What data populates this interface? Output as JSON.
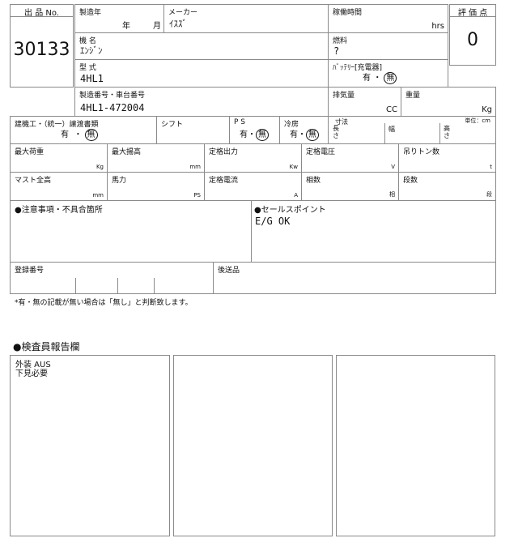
{
  "lot": {
    "label": "出 品 No.",
    "value": "30133"
  },
  "score": {
    "label": "評 価 点",
    "value": "0"
  },
  "year": {
    "label": "製造年",
    "year_unit": "年",
    "month_unit": "月"
  },
  "maker": {
    "label": "メーカー",
    "value": "ｲｽｽﾞ"
  },
  "hours": {
    "label": "稼働時間",
    "unit": "hrs"
  },
  "model_name": {
    "label": "機 名",
    "value": "ｴﾝｼﾞﾝ"
  },
  "fuel": {
    "label": "燃料",
    "value": "?"
  },
  "model_type": {
    "label": "型 式",
    "value": "4HL1"
  },
  "battery": {
    "label": "ﾊﾞｯﾃﾘｰ[充電器]",
    "yes": "有",
    "sep": "・",
    "no": "無",
    "selected": "無"
  },
  "serial": {
    "label": "製造番号・車台番号",
    "value": "4HL1-472004"
  },
  "displacement": {
    "label": "排気量",
    "unit": "CC"
  },
  "weight": {
    "label": "重量",
    "unit": "Kg"
  },
  "transfer_docs": {
    "label": "建機工・（統一）譲渡書類",
    "yes": "有",
    "sep": "・",
    "no": "無",
    "selected": "無"
  },
  "shift": {
    "label": "シフト"
  },
  "ps": {
    "label": "P S",
    "yes": "有",
    "sep": "・",
    "no": "無",
    "selected": "無"
  },
  "aircon": {
    "label": "冷房",
    "yes": "有",
    "sep": "・",
    "no": "無",
    "selected": "無"
  },
  "dimensions": {
    "label": "寸法",
    "length": "長さ",
    "width": "幅",
    "height": "高さ",
    "unit_note": "単位：cm"
  },
  "specs": [
    {
      "label": "最大荷重",
      "unit": "Kg"
    },
    {
      "label": "最大揚高",
      "unit": "mm"
    },
    {
      "label": "定格出力",
      "unit": "Kw"
    },
    {
      "label": "定格電圧",
      "unit": "V"
    },
    {
      "label": "吊りトン数",
      "unit": "t"
    },
    {
      "label": "マスト全高",
      "unit": "mm"
    },
    {
      "label": "馬力",
      "unit": "PS"
    },
    {
      "label": "定格電流",
      "unit": "A"
    },
    {
      "label": "相数",
      "unit": "相"
    },
    {
      "label": "段数",
      "unit": "段"
    }
  ],
  "notes": {
    "label": "●注意事項・不具合箇所"
  },
  "sales_point": {
    "label": "●セールスポイント",
    "value": "E/G OK"
  },
  "registration": {
    "label": "登録番号"
  },
  "later_items": {
    "label": "後送品"
  },
  "footnote": "*有・無の記載が無い場合は「無し」と判断致します。",
  "inspector": {
    "title": "●検査員報告欄",
    "box1_lines": [
      "外装 AUS",
      "下見必要"
    ]
  }
}
